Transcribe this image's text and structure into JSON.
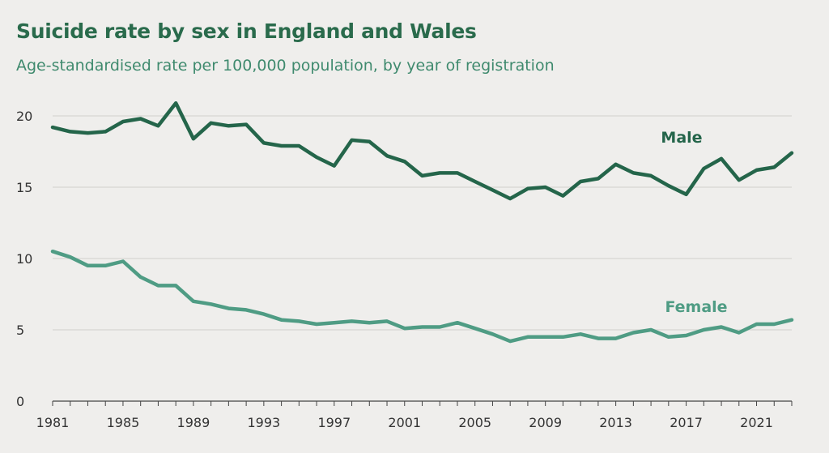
{
  "chart_data": {
    "type": "line",
    "title": "Suicide rate by sex in England and Wales",
    "subtitle": "Age-standardised rate per 100,000 population, by year of registration",
    "xlabel": "",
    "ylabel": "",
    "xlim": [
      1981,
      2023
    ],
    "ylim": [
      0,
      20
    ],
    "grid": true,
    "xticks": [
      "1981",
      "1985",
      "1989",
      "1993",
      "1997",
      "2001",
      "2005",
      "2009",
      "2013",
      "2017",
      "2021"
    ],
    "yticks": [
      "0",
      "5",
      "10",
      "15",
      "20"
    ],
    "x": [
      1981,
      1982,
      1983,
      1984,
      1985,
      1986,
      1987,
      1988,
      1989,
      1990,
      1991,
      1992,
      1993,
      1994,
      1995,
      1996,
      1997,
      1998,
      1999,
      2000,
      2001,
      2002,
      2003,
      2004,
      2005,
      2006,
      2007,
      2008,
      2009,
      2010,
      2011,
      2012,
      2013,
      2014,
      2015,
      2016,
      2017,
      2018,
      2019,
      2020,
      2021,
      2022,
      2023
    ],
    "series": [
      {
        "name": "Male",
        "color": "#24654a",
        "values": [
          19.2,
          18.9,
          18.8,
          18.9,
          19.6,
          19.8,
          19.3,
          20.9,
          18.4,
          19.5,
          19.3,
          19.4,
          18.1,
          17.9,
          17.9,
          17.1,
          16.5,
          18.3,
          18.2,
          17.2,
          16.8,
          15.8,
          16.0,
          16.0,
          15.4,
          14.8,
          14.2,
          14.9,
          15.0,
          14.4,
          15.4,
          15.6,
          16.6,
          16.0,
          15.8,
          15.1,
          14.5,
          16.3,
          17.0,
          15.5,
          16.2,
          16.4,
          17.4
        ]
      },
      {
        "name": "Female",
        "color": "#4f9c84",
        "values": [
          10.5,
          10.1,
          9.5,
          9.5,
          9.8,
          8.7,
          8.1,
          8.1,
          7.0,
          6.8,
          6.5,
          6.4,
          6.1,
          5.7,
          5.6,
          5.4,
          5.5,
          5.6,
          5.5,
          5.6,
          5.1,
          5.2,
          5.2,
          5.5,
          5.1,
          4.7,
          4.2,
          4.5,
          4.5,
          4.5,
          4.7,
          4.4,
          4.4,
          4.8,
          5.0,
          4.5,
          4.6,
          5.0,
          5.2,
          4.8,
          5.4,
          5.4,
          5.7
        ]
      }
    ]
  }
}
